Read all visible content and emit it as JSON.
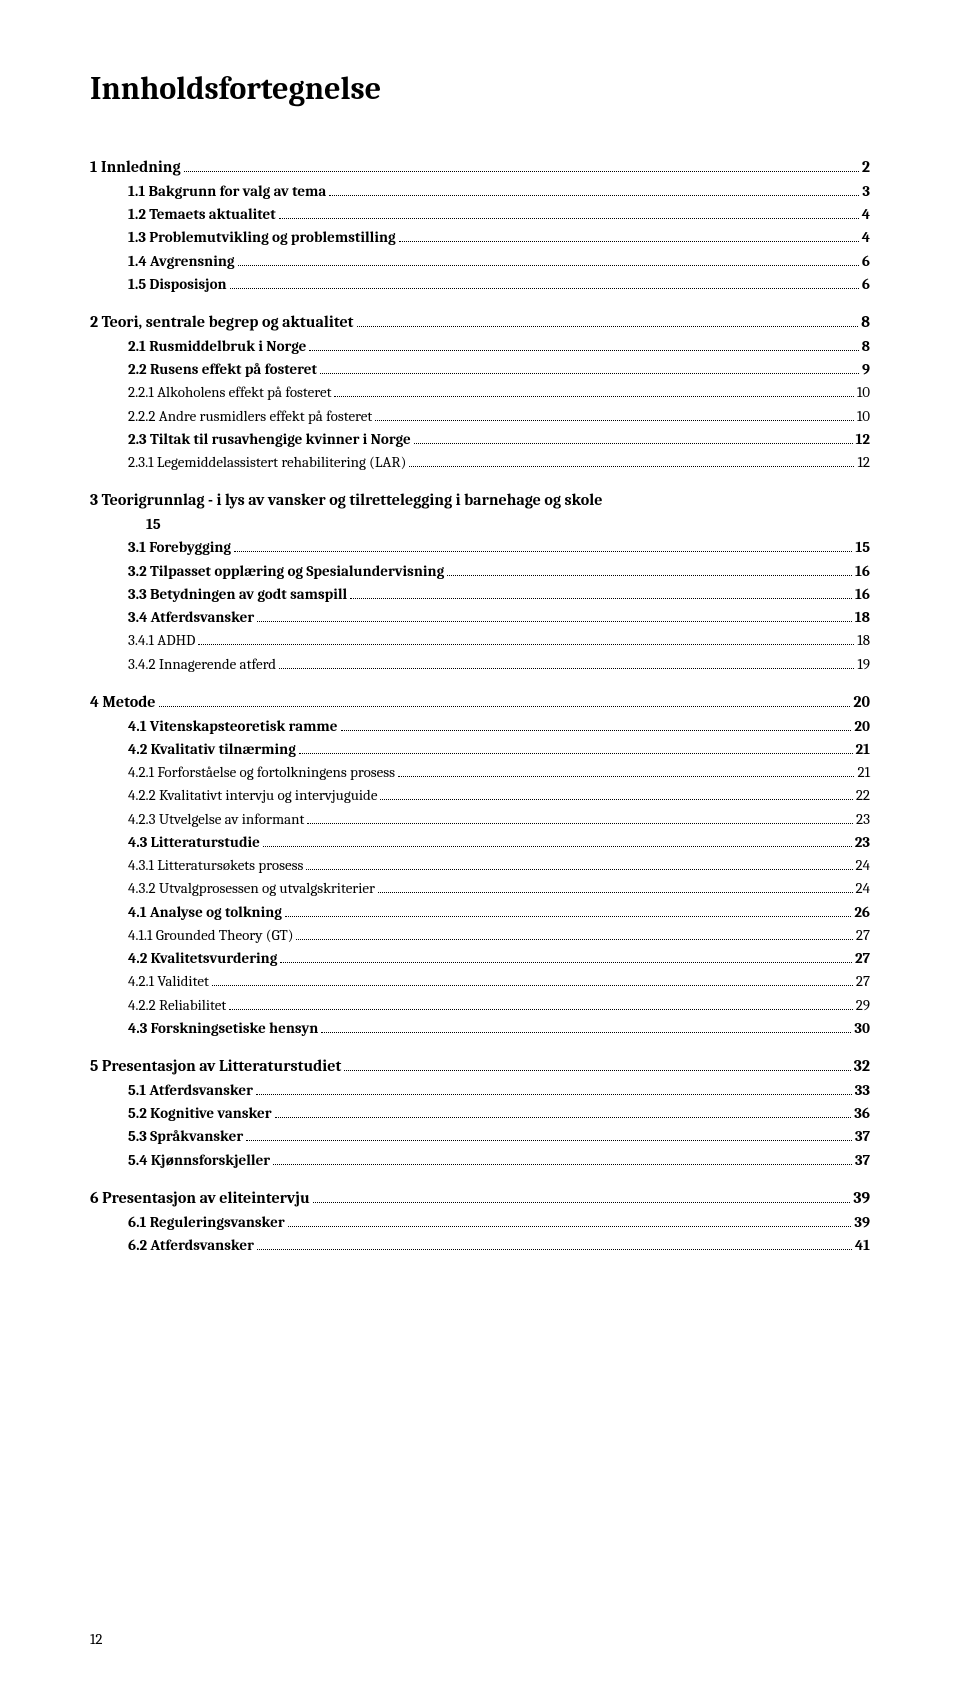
{
  "title": "Innholdsfortegnelse",
  "footer_page": "12",
  "entries": [
    {
      "level": 1,
      "label": "1   Innledning",
      "page": "2"
    },
    {
      "level": 2,
      "label": "1.1    Bakgrunn for valg av tema",
      "page": "3"
    },
    {
      "level": 2,
      "label": "1.2    Temaets aktualitet",
      "page": "4"
    },
    {
      "level": 2,
      "label": "1.3    Problemutvikling og problemstilling",
      "page": "4"
    },
    {
      "level": 2,
      "label": "1.4    Avgrensning",
      "page": "6"
    },
    {
      "level": 2,
      "label": "1.5    Disposisjon",
      "page": "6"
    },
    {
      "level": 1,
      "label": "2   Teori, sentrale begrep og aktualitet",
      "page": "8"
    },
    {
      "level": 2,
      "label": "2.1    Rusmiddelbruk i Norge",
      "page": "8"
    },
    {
      "level": 2,
      "label": "2.2    Rusens effekt på fosteret",
      "page": "9"
    },
    {
      "level": 3,
      "label": "2.2.1    Alkoholens effekt på fosteret",
      "page": "10"
    },
    {
      "level": 3,
      "label": "2.2.2    Andre rusmidlers effekt på fosteret",
      "page": "10"
    },
    {
      "level": 2,
      "label": "2.3    Tiltak til rusavhengige kvinner i Norge",
      "page": "12"
    },
    {
      "level": 3,
      "label": "2.3.1    Legemiddelassistert rehabilitering (LAR)",
      "page": "12"
    },
    {
      "level": 1,
      "label": "3   Teorigrunnlag -  i lys av vansker og tilrettelegging i barnehage og skole",
      "page": "",
      "nopagenum": true
    },
    {
      "level": "cont",
      "label": "15",
      "page": "",
      "nodots": true
    },
    {
      "level": 2,
      "label": "3.1    Forebygging",
      "page": "15"
    },
    {
      "level": 2,
      "label": "3.2    Tilpasset opplæring og Spesialundervisning",
      "page": "16"
    },
    {
      "level": 2,
      "label": "3.3    Betydningen av godt samspill",
      "page": "16"
    },
    {
      "level": 2,
      "label": "3.4    Atferdsvansker",
      "page": "18"
    },
    {
      "level": 3,
      "label": "3.4.1    ADHD",
      "page": "18"
    },
    {
      "level": 3,
      "label": "3.4.2    Innagerende atferd",
      "page": "19"
    },
    {
      "level": 1,
      "label": "4   Metode",
      "page": "20"
    },
    {
      "level": 2,
      "label": "4.1    Vitenskapsteoretisk ramme",
      "page": "20"
    },
    {
      "level": 2,
      "label": "4.2    Kvalitativ tilnærming",
      "page": "21"
    },
    {
      "level": 3,
      "label": "4.2.1    Forforståelse og fortolkningens prosess",
      "page": "21"
    },
    {
      "level": 3,
      "label": "4.2.2    Kvalitativt intervju og intervjuguide",
      "page": "22"
    },
    {
      "level": 3,
      "label": "4.2.3    Utvelgelse av informant",
      "page": "23"
    },
    {
      "level": 2,
      "label": "4.3    Litteraturstudie",
      "page": "23"
    },
    {
      "level": 3,
      "label": "4.3.1    Litteratursøkets prosess",
      "page": "24"
    },
    {
      "level": 3,
      "label": "4.3.2    Utvalgprosessen og utvalgskriterier",
      "page": "24"
    },
    {
      "level": 2,
      "label": "4.1    Analyse og tolkning",
      "page": "26"
    },
    {
      "level": 3,
      "label": "4.1.1    Grounded Theory (GT)",
      "page": "27"
    },
    {
      "level": 2,
      "label": "4.2    Kvalitetsvurdering",
      "page": "27"
    },
    {
      "level": 3,
      "label": "4.2.1    Validitet",
      "page": "27"
    },
    {
      "level": 3,
      "label": "4.2.2    Reliabilitet",
      "page": "29"
    },
    {
      "level": 2,
      "label": "4.3    Forskningsetiske hensyn",
      "page": "30"
    },
    {
      "level": 1,
      "label": "5   Presentasjon av Litteraturstudiet",
      "page": "32"
    },
    {
      "level": 2,
      "label": "5.1    Atferdsvansker",
      "page": "33"
    },
    {
      "level": 2,
      "label": "5.2    Kognitive vansker",
      "page": "36"
    },
    {
      "level": 2,
      "label": "5.3    Språkvansker",
      "page": "37"
    },
    {
      "level": 2,
      "label": "5.4    Kjønnsforskjeller",
      "page": "37"
    },
    {
      "level": 1,
      "label": "6   Presentasjon av eliteintervju",
      "page": "39"
    },
    {
      "level": 2,
      "label": "6.1    Reguleringsvansker",
      "page": "39"
    },
    {
      "level": 2,
      "label": "6.2    Atferdsvansker",
      "page": "41"
    }
  ]
}
